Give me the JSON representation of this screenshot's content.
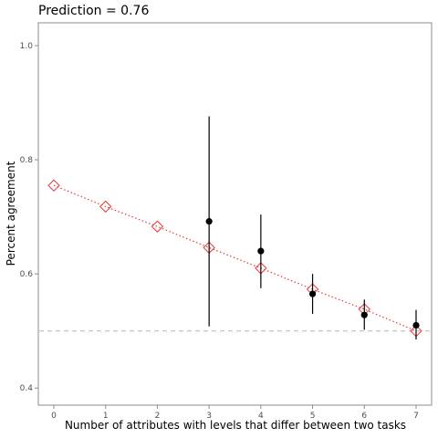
{
  "chart_data": {
    "type": "scatter",
    "title": "Prediction = 0.76",
    "xlabel": "Number of attributes with levels that differ between two tasks",
    "ylabel": "Percent agreement",
    "xlim": [
      -0.3,
      7.3
    ],
    "ylim": [
      0.37,
      1.04
    ],
    "x_ticks": [
      0,
      1,
      2,
      3,
      4,
      5,
      6,
      7
    ],
    "y_ticks": [
      0.4,
      0.6,
      0.8,
      1.0
    ],
    "y_tick_labels": [
      "0.4",
      "0.6",
      "0.8",
      "1.0"
    ],
    "grid": false,
    "reference_line": {
      "y": 0.5,
      "style": "dashed",
      "color": "#bebebe"
    },
    "colors": {
      "prediction": "#e8393b",
      "observed": "#000000",
      "frame": "#8c8c8c"
    },
    "series": [
      {
        "marker": "open-diamond",
        "line": "dotted",
        "x": [
          0,
          1,
          2,
          3,
          4,
          5,
          6,
          7
        ],
        "y": [
          0.755,
          0.718,
          0.683,
          0.646,
          0.61,
          0.573,
          0.538,
          0.5
        ]
      },
      {
        "marker": "filled-circle",
        "x": [
          3,
          4,
          5,
          6,
          7
        ],
        "y": [
          0.692,
          0.64,
          0.565,
          0.528,
          0.51
        ],
        "ci_low": [
          0.508,
          0.575,
          0.53,
          0.502,
          0.485
        ],
        "ci_high": [
          0.876,
          0.704,
          0.6,
          0.555,
          0.537
        ]
      }
    ]
  }
}
